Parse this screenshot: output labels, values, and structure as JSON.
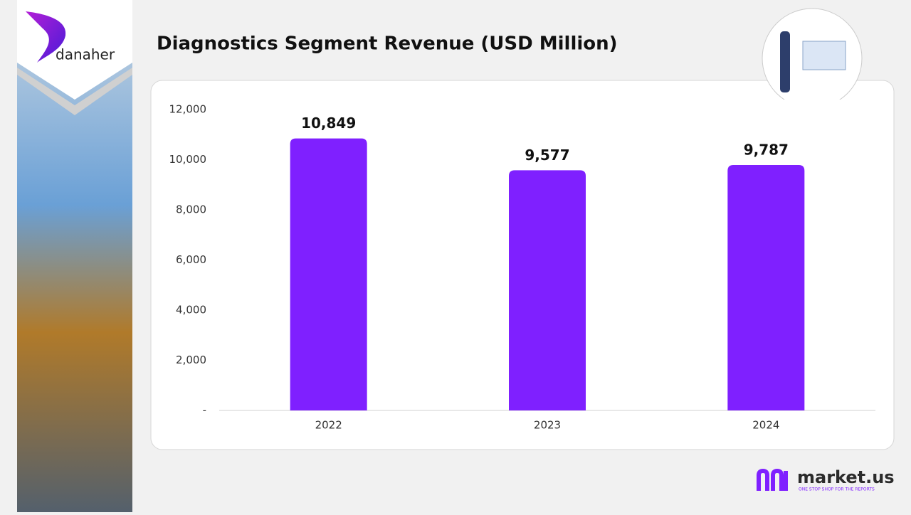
{
  "brand": {
    "company": "danaher",
    "publisher": "market.us",
    "tagline": "ONE STOP SHOP FOR THE REPORTS"
  },
  "chart_data": {
    "type": "bar",
    "title": "Diagnostics Segment Revenue  (USD Million)",
    "categories": [
      "2022",
      "2023",
      "2024"
    ],
    "values": [
      10849,
      9577,
      9787
    ],
    "value_labels": [
      "10,849",
      "9,577",
      "9,787"
    ],
    "color": "#7f20ff",
    "ylim": [
      0,
      12000
    ],
    "yticks": [
      {
        "value": 0,
        "label": "-"
      },
      {
        "value": 2000,
        "label": "2,000"
      },
      {
        "value": 4000,
        "label": "4,000"
      },
      {
        "value": 6000,
        "label": "6,000"
      },
      {
        "value": 8000,
        "label": "8,000"
      },
      {
        "value": 10000,
        "label": "10,000"
      },
      {
        "value": 12000,
        "label": "12,000"
      }
    ],
    "grid": false
  }
}
